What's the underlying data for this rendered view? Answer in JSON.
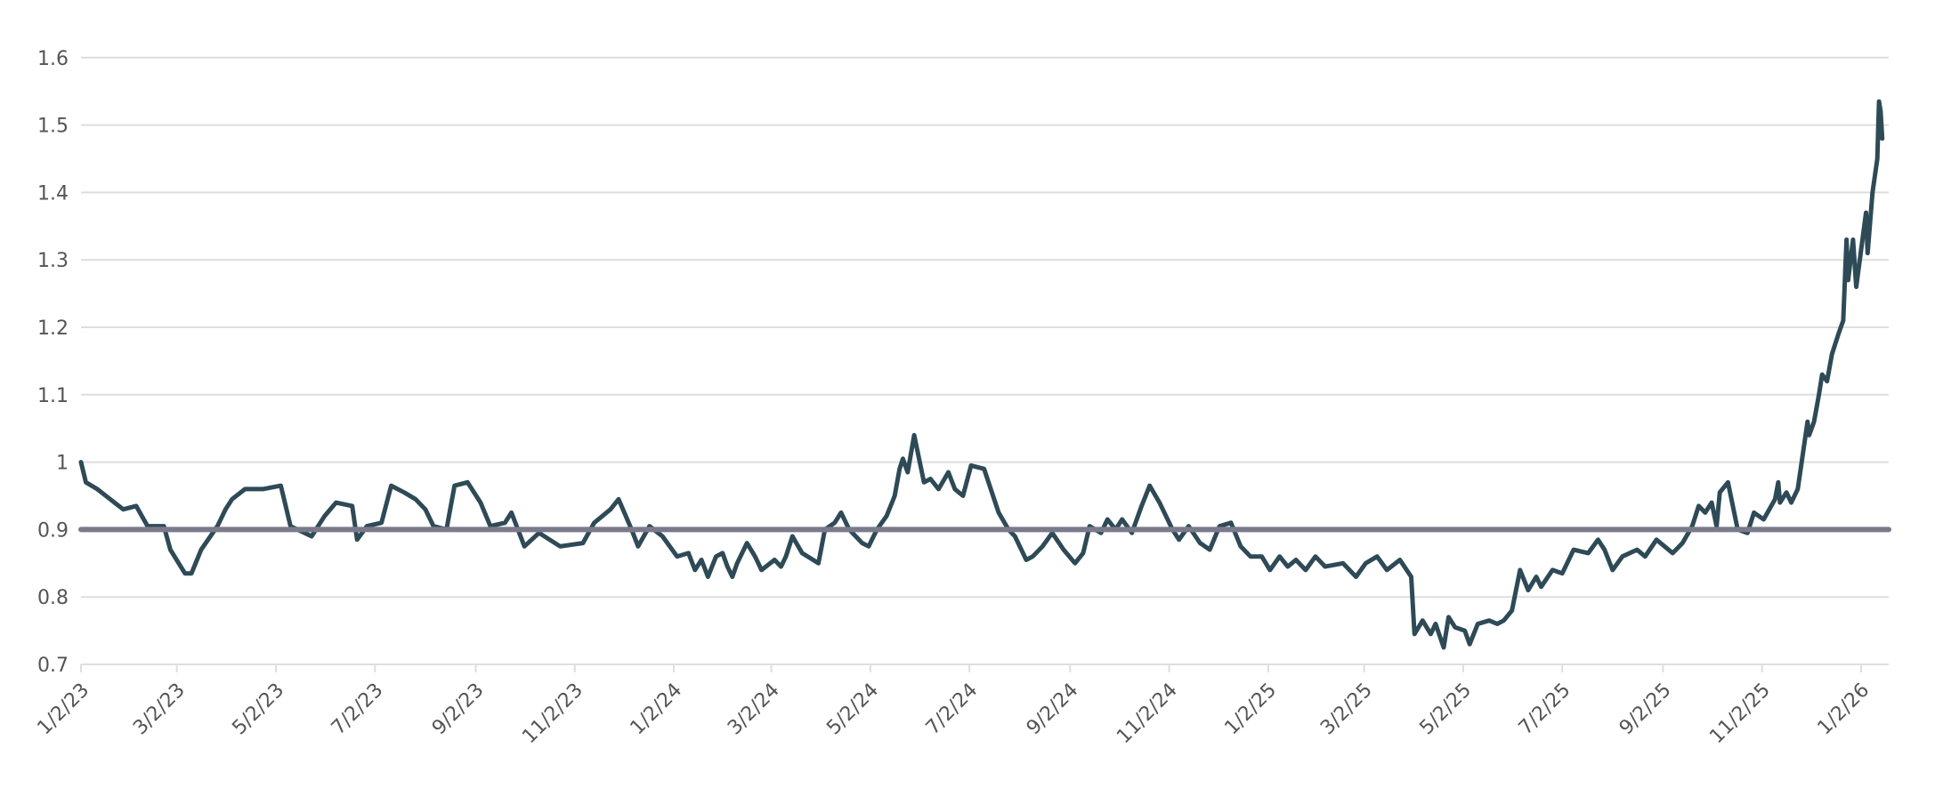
{
  "chart_data": {
    "type": "line",
    "title": "",
    "xlabel": "",
    "ylabel": "",
    "ylim": [
      0.7,
      1.6
    ],
    "yticks": [
      "1.6",
      "1.5",
      "1.4",
      "1.3",
      "1.2",
      "1.1",
      "1",
      "0.9",
      "0.8",
      "0.7"
    ],
    "xlim": [
      "2023-01-02",
      "2026-01-18"
    ],
    "xticks": [
      {
        "date": "2023-01-02",
        "label": "1/2/23"
      },
      {
        "date": "2023-03-02",
        "label": "3/2/23"
      },
      {
        "date": "2023-05-02",
        "label": "5/2/23"
      },
      {
        "date": "2023-07-02",
        "label": "7/2/23"
      },
      {
        "date": "2023-09-02",
        "label": "9/2/23"
      },
      {
        "date": "2023-11-02",
        "label": "11/2/23"
      },
      {
        "date": "2024-01-02",
        "label": "1/2/24"
      },
      {
        "date": "2024-03-02",
        "label": "3/2/24"
      },
      {
        "date": "2024-05-02",
        "label": "5/2/24"
      },
      {
        "date": "2024-07-02",
        "label": "7/2/24"
      },
      {
        "date": "2024-09-02",
        "label": "9/2/24"
      },
      {
        "date": "2024-11-02",
        "label": "11/2/24"
      },
      {
        "date": "2025-01-02",
        "label": "1/2/25"
      },
      {
        "date": "2025-03-02",
        "label": "3/2/25"
      },
      {
        "date": "2025-05-02",
        "label": "5/2/25"
      },
      {
        "date": "2025-07-02",
        "label": "7/2/25"
      },
      {
        "date": "2025-09-02",
        "label": "9/2/25"
      },
      {
        "date": "2025-11-02",
        "label": "11/2/25"
      },
      {
        "date": "2026-01-02",
        "label": "1/2/26"
      }
    ],
    "grid": true,
    "reference_line": {
      "value": 0.9,
      "color": "#7a7a8c"
    },
    "series": [
      {
        "color": "#2e4a56",
        "points": [
          [
            "2023-01-02",
            1.0
          ],
          [
            "2023-01-05",
            0.97
          ],
          [
            "2023-01-12",
            0.96
          ],
          [
            "2023-01-20",
            0.945
          ],
          [
            "2023-01-28",
            0.93
          ],
          [
            "2023-02-05",
            0.935
          ],
          [
            "2023-02-12",
            0.905
          ],
          [
            "2023-02-22",
            0.905
          ],
          [
            "2023-02-26",
            0.87
          ],
          [
            "2023-03-07",
            0.835
          ],
          [
            "2023-03-11",
            0.835
          ],
          [
            "2023-03-17",
            0.87
          ],
          [
            "2023-03-27",
            0.905
          ],
          [
            "2023-04-01",
            0.93
          ],
          [
            "2023-04-05",
            0.945
          ],
          [
            "2023-04-13",
            0.96
          ],
          [
            "2023-04-24",
            0.96
          ],
          [
            "2023-05-05",
            0.965
          ],
          [
            "2023-05-11",
            0.905
          ],
          [
            "2023-05-24",
            0.89
          ],
          [
            "2023-06-01",
            0.92
          ],
          [
            "2023-06-08",
            0.94
          ],
          [
            "2023-06-18",
            0.935
          ],
          [
            "2023-06-21",
            0.885
          ],
          [
            "2023-06-27",
            0.905
          ],
          [
            "2023-07-06",
            0.91
          ],
          [
            "2023-07-12",
            0.965
          ],
          [
            "2023-07-20",
            0.955
          ],
          [
            "2023-07-27",
            0.945
          ],
          [
            "2023-08-02",
            0.93
          ],
          [
            "2023-08-07",
            0.905
          ],
          [
            "2023-08-15",
            0.9
          ],
          [
            "2023-08-20",
            0.965
          ],
          [
            "2023-08-28",
            0.97
          ],
          [
            "2023-09-05",
            0.94
          ],
          [
            "2023-09-11",
            0.905
          ],
          [
            "2023-09-20",
            0.91
          ],
          [
            "2023-09-24",
            0.925
          ],
          [
            "2023-10-02",
            0.875
          ],
          [
            "2023-10-11",
            0.895
          ],
          [
            "2023-10-24",
            0.875
          ],
          [
            "2023-11-07",
            0.88
          ],
          [
            "2023-11-14",
            0.91
          ],
          [
            "2023-11-24",
            0.93
          ],
          [
            "2023-11-29",
            0.945
          ],
          [
            "2023-12-07",
            0.9
          ],
          [
            "2023-12-11",
            0.875
          ],
          [
            "2023-12-18",
            0.905
          ],
          [
            "2023-12-26",
            0.89
          ],
          [
            "2024-01-04",
            0.86
          ],
          [
            "2024-01-11",
            0.865
          ],
          [
            "2024-01-15",
            0.84
          ],
          [
            "2024-01-19",
            0.855
          ],
          [
            "2024-01-23",
            0.83
          ],
          [
            "2024-01-28",
            0.86
          ],
          [
            "2024-02-01",
            0.865
          ],
          [
            "2024-02-04",
            0.845
          ],
          [
            "2024-02-07",
            0.83
          ],
          [
            "2024-02-10",
            0.85
          ],
          [
            "2024-02-16",
            0.88
          ],
          [
            "2024-02-21",
            0.86
          ],
          [
            "2024-02-25",
            0.84
          ],
          [
            "2024-03-04",
            0.855
          ],
          [
            "2024-03-08",
            0.845
          ],
          [
            "2024-03-11",
            0.86
          ],
          [
            "2024-03-15",
            0.89
          ],
          [
            "2024-03-21",
            0.865
          ],
          [
            "2024-03-31",
            0.85
          ],
          [
            "2024-04-04",
            0.9
          ],
          [
            "2024-04-10",
            0.91
          ],
          [
            "2024-04-14",
            0.925
          ],
          [
            "2024-04-19",
            0.9
          ],
          [
            "2024-04-27",
            0.88
          ],
          [
            "2024-05-01",
            0.875
          ],
          [
            "2024-05-06",
            0.9
          ],
          [
            "2024-05-12",
            0.92
          ],
          [
            "2024-05-17",
            0.95
          ],
          [
            "2024-05-20",
            0.99
          ],
          [
            "2024-05-22",
            1.005
          ],
          [
            "2024-05-25",
            0.985
          ],
          [
            "2024-05-29",
            1.04
          ],
          [
            "2024-06-04",
            0.97
          ],
          [
            "2024-06-08",
            0.975
          ],
          [
            "2024-06-13",
            0.96
          ],
          [
            "2024-06-19",
            0.985
          ],
          [
            "2024-06-23",
            0.96
          ],
          [
            "2024-06-28",
            0.95
          ],
          [
            "2024-07-03",
            0.995
          ],
          [
            "2024-07-11",
            0.99
          ],
          [
            "2024-07-20",
            0.925
          ],
          [
            "2024-07-26",
            0.9
          ],
          [
            "2024-07-30",
            0.89
          ],
          [
            "2024-08-06",
            0.855
          ],
          [
            "2024-08-10",
            0.86
          ],
          [
            "2024-08-16",
            0.875
          ],
          [
            "2024-08-22",
            0.895
          ],
          [
            "2024-08-29",
            0.87
          ],
          [
            "2024-09-05",
            0.85
          ],
          [
            "2024-09-10",
            0.865
          ],
          [
            "2024-09-14",
            0.905
          ],
          [
            "2024-09-21",
            0.895
          ],
          [
            "2024-09-25",
            0.915
          ],
          [
            "2024-09-30",
            0.9
          ],
          [
            "2024-10-04",
            0.915
          ],
          [
            "2024-10-10",
            0.895
          ],
          [
            "2024-10-16",
            0.935
          ],
          [
            "2024-10-21",
            0.965
          ],
          [
            "2024-10-27",
            0.94
          ],
          [
            "2024-11-04",
            0.9
          ],
          [
            "2024-11-08",
            0.885
          ],
          [
            "2024-11-14",
            0.905
          ],
          [
            "2024-11-21",
            0.88
          ],
          [
            "2024-11-27",
            0.87
          ],
          [
            "2024-12-03",
            0.905
          ],
          [
            "2024-12-10",
            0.91
          ],
          [
            "2024-12-16",
            0.875
          ],
          [
            "2024-12-22",
            0.86
          ],
          [
            "2024-12-29",
            0.86
          ],
          [
            "2025-01-03",
            0.84
          ],
          [
            "2025-01-09",
            0.86
          ],
          [
            "2025-01-14",
            0.845
          ],
          [
            "2025-01-19",
            0.855
          ],
          [
            "2025-01-25",
            0.84
          ],
          [
            "2025-01-31",
            0.86
          ],
          [
            "2025-02-06",
            0.845
          ],
          [
            "2025-02-17",
            0.85
          ],
          [
            "2025-02-25",
            0.83
          ],
          [
            "2025-03-03",
            0.85
          ],
          [
            "2025-03-10",
            0.86
          ],
          [
            "2025-03-16",
            0.84
          ],
          [
            "2025-03-24",
            0.855
          ],
          [
            "2025-03-31",
            0.83
          ],
          [
            "2025-04-02",
            0.745
          ],
          [
            "2025-04-07",
            0.765
          ],
          [
            "2025-04-12",
            0.745
          ],
          [
            "2025-04-15",
            0.76
          ],
          [
            "2025-04-20",
            0.725
          ],
          [
            "2025-04-23",
            0.77
          ],
          [
            "2025-04-27",
            0.755
          ],
          [
            "2025-05-03",
            0.75
          ],
          [
            "2025-05-06",
            0.73
          ],
          [
            "2025-05-11",
            0.76
          ],
          [
            "2025-05-18",
            0.765
          ],
          [
            "2025-05-23",
            0.76
          ],
          [
            "2025-05-27",
            0.765
          ],
          [
            "2025-06-01",
            0.78
          ],
          [
            "2025-06-06",
            0.84
          ],
          [
            "2025-06-11",
            0.81
          ],
          [
            "2025-06-16",
            0.83
          ],
          [
            "2025-06-19",
            0.815
          ],
          [
            "2025-06-26",
            0.84
          ],
          [
            "2025-07-02",
            0.835
          ],
          [
            "2025-07-09",
            0.87
          ],
          [
            "2025-07-18",
            0.865
          ],
          [
            "2025-07-24",
            0.885
          ],
          [
            "2025-07-28",
            0.87
          ],
          [
            "2025-08-02",
            0.84
          ],
          [
            "2025-08-08",
            0.86
          ],
          [
            "2025-08-17",
            0.87
          ],
          [
            "2025-08-22",
            0.86
          ],
          [
            "2025-08-29",
            0.885
          ],
          [
            "2025-09-08",
            0.865
          ],
          [
            "2025-09-14",
            0.88
          ],
          [
            "2025-09-20",
            0.905
          ],
          [
            "2025-09-24",
            0.935
          ],
          [
            "2025-09-28",
            0.925
          ],
          [
            "2025-10-02",
            0.94
          ],
          [
            "2025-10-05",
            0.905
          ],
          [
            "2025-10-07",
            0.955
          ],
          [
            "2025-10-12",
            0.97
          ],
          [
            "2025-10-18",
            0.9
          ],
          [
            "2025-10-24",
            0.895
          ],
          [
            "2025-10-28",
            0.925
          ],
          [
            "2025-11-03",
            0.915
          ],
          [
            "2025-11-10",
            0.945
          ],
          [
            "2025-11-12",
            0.97
          ],
          [
            "2025-11-13",
            0.94
          ],
          [
            "2025-11-17",
            0.955
          ],
          [
            "2025-11-20",
            0.94
          ],
          [
            "2025-11-24",
            0.96
          ],
          [
            "2025-11-30",
            1.06
          ],
          [
            "2025-12-01",
            1.04
          ],
          [
            "2025-12-04",
            1.06
          ],
          [
            "2025-12-07",
            1.1
          ],
          [
            "2025-12-09",
            1.13
          ],
          [
            "2025-12-12",
            1.12
          ],
          [
            "2025-12-15",
            1.16
          ],
          [
            "2025-12-19",
            1.19
          ],
          [
            "2025-12-22",
            1.21
          ],
          [
            "2025-12-24",
            1.33
          ],
          [
            "2025-12-25",
            1.27
          ],
          [
            "2025-12-28",
            1.33
          ],
          [
            "2025-12-30",
            1.26
          ],
          [
            "2026-01-05",
            1.37
          ],
          [
            "2026-01-06",
            1.31
          ],
          [
            "2026-01-09",
            1.4
          ],
          [
            "2026-01-12",
            1.45
          ],
          [
            "2026-01-13",
            1.535
          ],
          [
            "2026-01-14",
            1.52
          ],
          [
            "2026-01-15",
            1.48
          ]
        ]
      }
    ]
  }
}
